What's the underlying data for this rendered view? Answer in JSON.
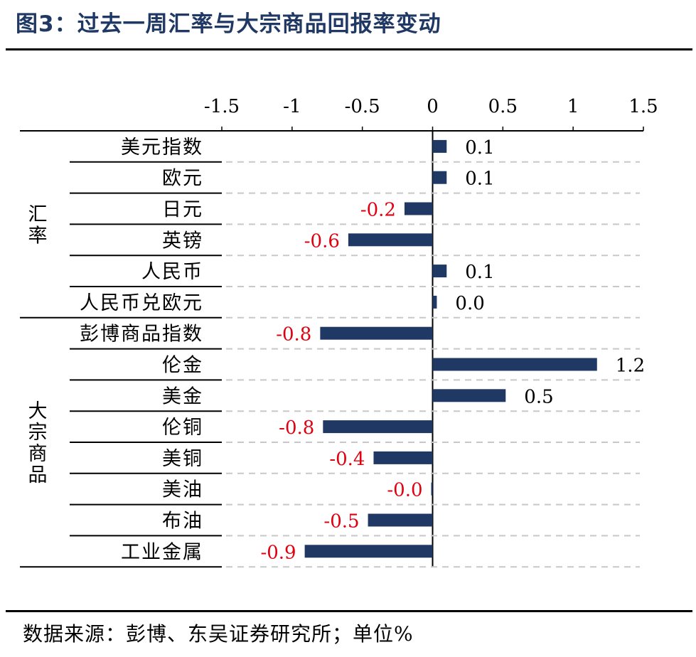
{
  "title": "图3：过去一周汇率与大宗商品回报率变动",
  "source": "数据来源：彭博、东吴证券研究所；单位%",
  "chart_data": {
    "type": "bar",
    "orientation": "horizontal",
    "xlim": [
      -1.5,
      1.5
    ],
    "x_ticks": [
      "-1.5",
      "-1",
      "-0.5",
      "0",
      "0.5",
      "1",
      "1.5"
    ],
    "x_tick_values": [
      -1.5,
      -1,
      -0.5,
      0,
      0.5,
      1,
      1.5
    ],
    "groups": [
      {
        "name": "汇率",
        "start": 0,
        "count": 6
      },
      {
        "name": "大宗商品",
        "start": 6,
        "count": 8
      }
    ],
    "categories": [
      "美元指数",
      "欧元",
      "日元",
      "英镑",
      "人民币",
      "人民币兑欧元",
      "彭博商品指数",
      "伦金",
      "美金",
      "伦铜",
      "美铜",
      "美油",
      "布油",
      "工业金属"
    ],
    "values": [
      0.1,
      0.1,
      -0.2,
      -0.6,
      0.1,
      0.03,
      -0.8,
      1.17,
      0.52,
      -0.78,
      -0.42,
      -0.01,
      -0.46,
      -0.91
    ],
    "data_labels": [
      "0.1",
      "0.1",
      "-0.2",
      "-0.6",
      "0.1",
      "0.0",
      "-0.8",
      "1.2",
      "0.5",
      "-0.8",
      "-0.4",
      "-0.0",
      "-0.5",
      "-0.9"
    ],
    "bar_color": "#1f3864",
    "negative_label_color": "#e0000f",
    "positive_label_color": "#000000",
    "grid": "dashed-horizontal"
  }
}
